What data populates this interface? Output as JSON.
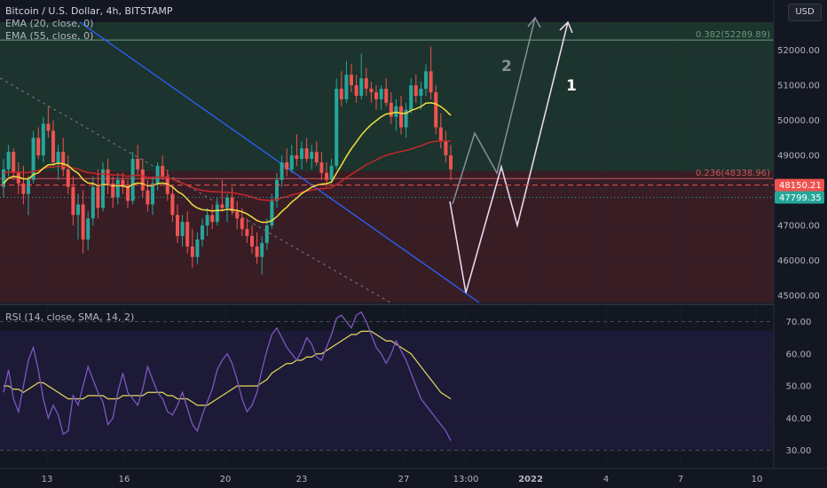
{
  "header": {
    "title": "Bitcoin / U.S. Dollar, 4h, BITSTAMP",
    "ema20": "EMA (20, close, 0)",
    "ema55": "EMA (55, close, 0)",
    "currency_button": "USD"
  },
  "rsi_header": "RSI (14, close, SMA, 14, 2)",
  "colors": {
    "background": "#131722",
    "bull": "#26a69a",
    "bear": "#ef5350",
    "ema20": "#f0e040",
    "ema55": "#c62828",
    "trendline": "#2962ff",
    "upper_zone": "#1e3a2f",
    "lower_zone": "#3d1e26",
    "rsi_line": "#7e57c2",
    "rsi_ma": "#e6d95a"
  },
  "chart_data": [
    {
      "type": "candlestick",
      "title": "Bitcoin / U.S. Dollar, 4h, BITSTAMP",
      "ylim": [
        44800,
        52800
      ],
      "y_ticks": [
        45000,
        46000,
        47000,
        48000,
        49000,
        50000,
        51000,
        52000
      ],
      "y_tick_labels": [
        "45000.00",
        "46000.00",
        "47000.00",
        "48000.00",
        "49000.00",
        "50000.00",
        "51000.00",
        "52000.00"
      ],
      "x_ticks": [
        "13",
        "16",
        "20",
        "23",
        "27",
        "13:00",
        "2022",
        "4",
        "7",
        "10"
      ],
      "last_price": "47799.35",
      "marked_price": "48150.21",
      "fib_levels": [
        {
          "label": "0.382(52289.89)",
          "value": 52289.89
        },
        {
          "label": "0.236(48338.96)",
          "value": 48338.96
        }
      ],
      "wave_labels": [
        "1",
        "2"
      ],
      "ohlc": [
        [
          48100,
          48900,
          47800,
          48600
        ],
        [
          48600,
          49300,
          48400,
          49100
        ],
        [
          49100,
          49200,
          48300,
          48500
        ],
        [
          48500,
          48800,
          47900,
          48200
        ],
        [
          48200,
          48700,
          47600,
          47900
        ],
        [
          47900,
          48400,
          47300,
          48300
        ],
        [
          48300,
          49700,
          48200,
          49500
        ],
        [
          49500,
          49800,
          48900,
          49000
        ],
        [
          49000,
          50100,
          48800,
          49900
        ],
        [
          49900,
          50400,
          49500,
          49700
        ],
        [
          49700,
          50000,
          48700,
          48800
        ],
        [
          48800,
          49300,
          48300,
          49100
        ],
        [
          49100,
          49500,
          48400,
          48600
        ],
        [
          48600,
          49000,
          47900,
          48100
        ],
        [
          48100,
          48400,
          47000,
          47300
        ],
        [
          47300,
          47900,
          46600,
          47600
        ],
        [
          47600,
          48000,
          46200,
          46600
        ],
        [
          46600,
          47400,
          46300,
          47200
        ],
        [
          47200,
          48400,
          47000,
          48100
        ],
        [
          48100,
          48600,
          47200,
          47500
        ],
        [
          47500,
          48800,
          47400,
          48600
        ],
        [
          48600,
          48900,
          47900,
          48200
        ],
        [
          48200,
          48400,
          47500,
          47800
        ],
        [
          47800,
          48500,
          47600,
          48300
        ],
        [
          48300,
          48500,
          47900,
          48100
        ],
        [
          48100,
          48300,
          47500,
          47700
        ],
        [
          47700,
          49100,
          47600,
          48900
        ],
        [
          48900,
          49300,
          48400,
          48600
        ],
        [
          48600,
          48900,
          47800,
          48000
        ],
        [
          48000,
          48300,
          47400,
          47600
        ],
        [
          47600,
          48400,
          47300,
          48200
        ],
        [
          48200,
          48800,
          48000,
          48700
        ],
        [
          48700,
          49000,
          48300,
          48400
        ],
        [
          48400,
          48600,
          47700,
          47900
        ],
        [
          47900,
          48100,
          47100,
          47300
        ],
        [
          47300,
          47600,
          46500,
          46700
        ],
        [
          46700,
          47300,
          46400,
          47100
        ],
        [
          47100,
          47400,
          46200,
          46400
        ],
        [
          46400,
          46900,
          45800,
          46100
        ],
        [
          46100,
          46800,
          45900,
          46600
        ],
        [
          46600,
          47200,
          46400,
          47000
        ],
        [
          47000,
          47500,
          46700,
          47300
        ],
        [
          47300,
          47600,
          46900,
          47100
        ],
        [
          47100,
          47800,
          47000,
          47600
        ],
        [
          47600,
          48300,
          47400,
          47500
        ],
        [
          47500,
          47900,
          47100,
          47800
        ],
        [
          47800,
          48100,
          47300,
          47400
        ],
        [
          47400,
          47700,
          46900,
          47200
        ],
        [
          47200,
          47500,
          46700,
          46900
        ],
        [
          46900,
          47200,
          46500,
          46700
        ],
        [
          46700,
          47000,
          46200,
          46400
        ],
        [
          46400,
          46800,
          45900,
          46100
        ],
        [
          46100,
          46700,
          45600,
          46500
        ],
        [
          46500,
          47200,
          46300,
          47000
        ],
        [
          47000,
          47900,
          46900,
          47700
        ],
        [
          47700,
          48500,
          47500,
          48300
        ],
        [
          48300,
          49000,
          48100,
          48800
        ],
        [
          48800,
          49200,
          48400,
          48600
        ],
        [
          48600,
          49300,
          48500,
          49000
        ],
        [
          49000,
          49600,
          48700,
          48900
        ],
        [
          48900,
          49400,
          48600,
          49200
        ],
        [
          49200,
          49500,
          48800,
          48900
        ],
        [
          48900,
          49300,
          48600,
          49100
        ],
        [
          49100,
          49400,
          48700,
          48800
        ],
        [
          48800,
          49100,
          48300,
          48500
        ],
        [
          48500,
          48800,
          48100,
          48300
        ],
        [
          48300,
          48900,
          48200,
          48700
        ],
        [
          48700,
          51200,
          48600,
          50900
        ],
        [
          50900,
          51400,
          50400,
          50600
        ],
        [
          50600,
          51700,
          50500,
          51300
        ],
        [
          51300,
          51600,
          50800,
          51000
        ],
        [
          51000,
          51300,
          50500,
          50700
        ],
        [
          50700,
          51900,
          50600,
          51200
        ],
        [
          51200,
          51500,
          50700,
          50900
        ],
        [
          50900,
          51100,
          50500,
          50800
        ],
        [
          50800,
          51000,
          50300,
          50600
        ],
        [
          50600,
          51000,
          50300,
          50900
        ],
        [
          50900,
          51200,
          50400,
          50500
        ],
        [
          50500,
          50800,
          49900,
          50100
        ],
        [
          50100,
          50600,
          49700,
          50400
        ],
        [
          50400,
          50700,
          49600,
          49800
        ],
        [
          49800,
          50500,
          49500,
          50300
        ],
        [
          50300,
          51200,
          50200,
          51000
        ],
        [
          51000,
          51300,
          50500,
          50700
        ],
        [
          50700,
          51100,
          50300,
          50900
        ],
        [
          50900,
          51600,
          50700,
          51400
        ],
        [
          51400,
          52100,
          50600,
          50800
        ],
        [
          50800,
          51000,
          49600,
          49800
        ],
        [
          49800,
          50200,
          49200,
          49400
        ],
        [
          49400,
          49700,
          48800,
          49000
        ],
        [
          49000,
          49300,
          48300,
          48600
        ]
      ],
      "ema20": [
        48200,
        48350,
        48400,
        48380,
        48330,
        48330,
        48450,
        48500,
        48630,
        48730,
        48740,
        48780,
        48760,
        48710,
        48580,
        48490,
        48310,
        48210,
        48200,
        48130,
        48170,
        48170,
        48130,
        48140,
        48130,
        48090,
        48170,
        48210,
        48190,
        48130,
        48140,
        48190,
        48210,
        48180,
        48100,
        47970,
        47890,
        47750,
        47590,
        47500,
        47450,
        47440,
        47410,
        47430,
        47430,
        47460,
        47450,
        47430,
        47390,
        47330,
        47240,
        47140,
        47090,
        47090,
        47140,
        47250,
        47400,
        47520,
        47670,
        47780,
        47910,
        48000,
        48090,
        48150,
        48180,
        48190,
        48240,
        48490,
        48720,
        48970,
        49190,
        49380,
        49580,
        49740,
        49880,
        49990,
        50100,
        50180,
        50200,
        50230,
        50200,
        50200,
        50280,
        50330,
        50390,
        50490,
        50500,
        50470,
        50390,
        50280,
        50140
      ],
      "ema55": [
        48500,
        48520,
        48520,
        48520,
        48510,
        48510,
        48550,
        48570,
        48620,
        48660,
        48670,
        48690,
        48690,
        48680,
        48640,
        48610,
        48550,
        48510,
        48500,
        48460,
        48470,
        48460,
        48440,
        48440,
        48430,
        48400,
        48420,
        48430,
        48410,
        48370,
        48370,
        48380,
        48380,
        48360,
        48320,
        48250,
        48210,
        48150,
        48080,
        48030,
        48000,
        47980,
        47960,
        47960,
        47950,
        47950,
        47930,
        47910,
        47880,
        47850,
        47810,
        47760,
        47730,
        47720,
        47720,
        47740,
        47790,
        47820,
        47870,
        47900,
        47950,
        47980,
        48010,
        48030,
        48050,
        48060,
        48080,
        48170,
        48260,
        48370,
        48460,
        48550,
        48640,
        48730,
        48800,
        48870,
        48940,
        49000,
        49040,
        49080,
        49110,
        49140,
        49180,
        49230,
        49270,
        49330,
        49380,
        49400,
        49410,
        49410,
        49400
      ]
    },
    {
      "type": "line",
      "title": "RSI (14, close, SMA, 14, 2)",
      "ylim": [
        26,
        74
      ],
      "y_ticks": [
        30,
        40,
        50,
        60,
        70
      ],
      "y_tick_labels": [
        "30.00",
        "40.00",
        "50.00",
        "60.00",
        "70.00"
      ],
      "series": [
        {
          "values": [
            48,
            55,
            46,
            42,
            50,
            58,
            62,
            55,
            46,
            40,
            44,
            41,
            35,
            36,
            47,
            44,
            50,
            56,
            52,
            48,
            45,
            38,
            40,
            48,
            54,
            48,
            46,
            44,
            49,
            56,
            52,
            48,
            46,
            42,
            41,
            44,
            48,
            43,
            38,
            36,
            41,
            45,
            49,
            55,
            58,
            60,
            57,
            52,
            46,
            42,
            44,
            48,
            55,
            61,
            66,
            68,
            65,
            62,
            60,
            58,
            61,
            65,
            63,
            59,
            58,
            62,
            66,
            71,
            72,
            70,
            68,
            72,
            73,
            70,
            66,
            62,
            60,
            57,
            60,
            64,
            61,
            58,
            54,
            50,
            46,
            44,
            42,
            40,
            38,
            36,
            33
          ]
        },
        {
          "values": [
            50,
            50,
            49,
            49,
            48,
            49,
            50,
            51,
            51,
            50,
            49,
            48,
            47,
            46,
            46,
            46,
            46,
            47,
            47,
            47,
            47,
            46,
            46,
            46,
            47,
            47,
            47,
            47,
            47,
            48,
            48,
            48,
            48,
            47,
            47,
            46,
            46,
            46,
            45,
            44,
            44,
            44,
            45,
            46,
            47,
            48,
            49,
            50,
            50,
            50,
            50,
            50,
            51,
            52,
            54,
            55,
            56,
            57,
            57,
            58,
            58,
            59,
            59,
            60,
            60,
            61,
            62,
            63,
            64,
            65,
            66,
            66,
            67,
            67,
            67,
            66,
            65,
            64,
            64,
            63,
            62,
            61,
            60,
            58,
            56,
            54,
            52,
            50,
            48,
            47,
            46
          ]
        }
      ]
    }
  ]
}
